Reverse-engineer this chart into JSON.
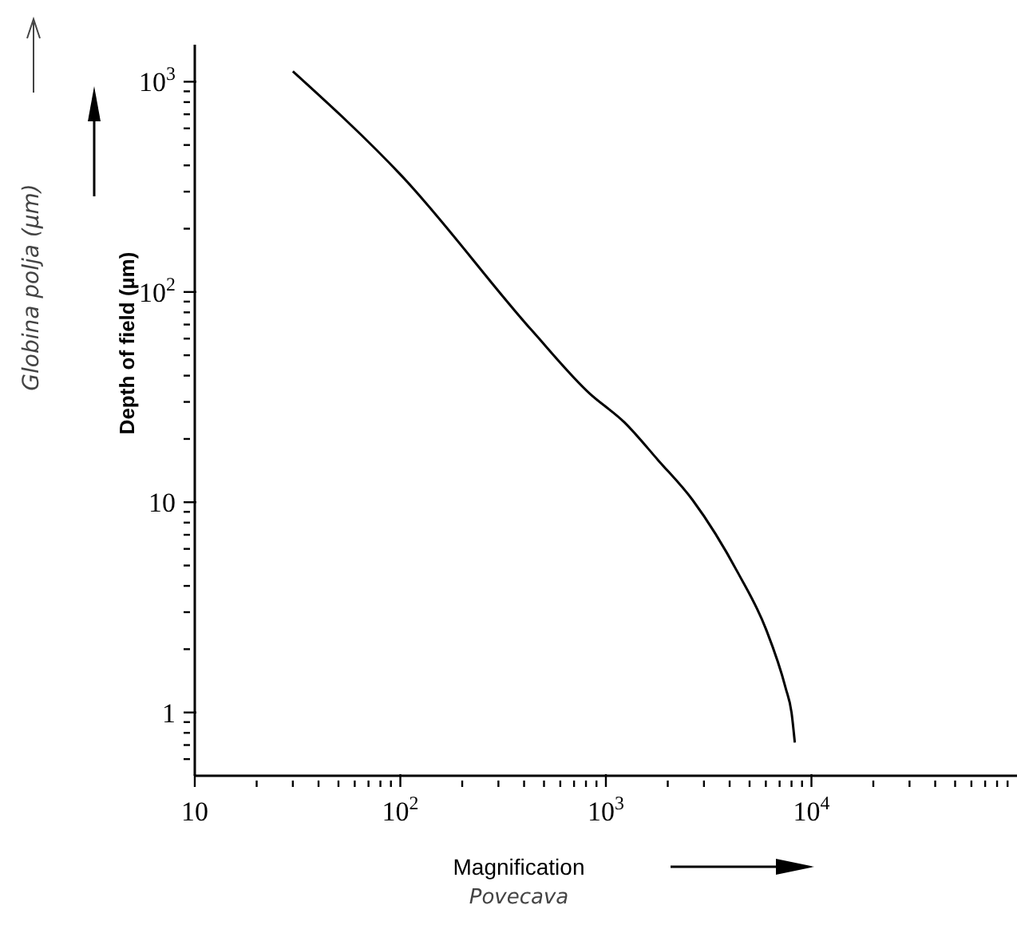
{
  "chart_data": {
    "type": "line",
    "xlabel": "Magnification",
    "ylabel": "Depth of field (µm)",
    "annotations": [
      "Globina polja (µm)",
      "Povecava"
    ],
    "log": "xy",
    "grid": false,
    "marker": "none",
    "line_style": "solid",
    "xlim": [
      10,
      100000
    ],
    "ylim": [
      0.5,
      1500
    ],
    "xticks": [
      10,
      {
        "value": 20,
        "label": null
      },
      {
        "value": 30,
        "label": null
      },
      {
        "value": 40,
        "label": null
      },
      {
        "value": 50,
        "label": null
      },
      {
        "value": 60,
        "label": null
      },
      {
        "value": 70,
        "label": null
      },
      {
        "value": 80,
        "label": null
      },
      {
        "value": 90,
        "label": null
      },
      {
        "value": 100,
        "label": "10$^{2}$"
      },
      {
        "value": 200,
        "label": null
      },
      {
        "value": 300,
        "label": null
      },
      {
        "value": 400,
        "label": null
      },
      {
        "value": 500,
        "label": null
      },
      {
        "value": 600,
        "label": null
      },
      {
        "value": 700,
        "label": null
      },
      {
        "value": 800,
        "label": null
      },
      {
        "value": 900,
        "label": null
      },
      {
        "value": 1000,
        "label": "10$^{3}$"
      },
      {
        "value": 2000,
        "label": null
      },
      {
        "value": 3000,
        "label": null
      },
      {
        "value": 4000,
        "label": null
      },
      {
        "value": 5000,
        "label": null
      },
      {
        "value": 6000,
        "label": null
      },
      {
        "value": 7000,
        "label": null
      },
      {
        "value": 8000,
        "label": null
      },
      {
        "value": 9000,
        "label": null
      },
      {
        "value": 10000,
        "label": "10$^{4}$"
      },
      {
        "value": 20000,
        "label": null
      },
      {
        "value": 30000,
        "label": null
      },
      {
        "value": 40000,
        "label": null
      },
      {
        "value": 50000,
        "label": null
      },
      {
        "value": 60000,
        "label": null
      },
      {
        "value": 70000,
        "label": null
      },
      {
        "value": 80000,
        "label": null
      },
      {
        "value": 90000,
        "label": null
      }
    ],
    "yticks": [
      {
        "value": 0.6,
        "label": null
      },
      {
        "value": 0.7,
        "label": null
      },
      {
        "value": 0.8,
        "label": null
      },
      {
        "value": 0.9,
        "label": null
      },
      1,
      {
        "value": 2,
        "label": null
      },
      {
        "value": 3,
        "label": null
      },
      {
        "value": 4,
        "label": null
      },
      {
        "value": 5,
        "label": null
      },
      {
        "value": 6,
        "label": null
      },
      {
        "value": 7,
        "label": null
      },
      {
        "value": 8,
        "label": null
      },
      {
        "value": 9,
        "label": null
      },
      10,
      {
        "value": 20,
        "label": null
      },
      {
        "value": 30,
        "label": null
      },
      {
        "value": 40,
        "label": null
      },
      {
        "value": 50,
        "label": null
      },
      {
        "value": 60,
        "label": null
      },
      {
        "value": 70,
        "label": null
      },
      {
        "value": 80,
        "label": null
      },
      {
        "value": 90,
        "label": null
      },
      {
        "value": 100,
        "label": "10$^{2}$"
      },
      {
        "value": 200,
        "label": null
      },
      {
        "value": 300,
        "label": null
      },
      {
        "value": 400,
        "label": null
      },
      {
        "value": 500,
        "label": null
      },
      {
        "value": 600,
        "label": null
      },
      {
        "value": 700,
        "label": null
      },
      {
        "value": 800,
        "label": null
      },
      {
        "value": 900,
        "label": null
      },
      {
        "value": 1000,
        "label": "10$^{3}$"
      }
    ],
    "x": [
      30,
      102,
      440,
      830,
      1230,
      1800,
      2650,
      4400,
      6000,
      7500,
      8000,
      8300
    ],
    "series": [
      {
        "color": "#000000",
        "values": [
          1120,
          355,
          65,
          33,
          24,
          15.8,
          10.2,
          4.6,
          2.5,
          1.3,
          1.0,
          0.72
        ]
      }
    ]
  }
}
